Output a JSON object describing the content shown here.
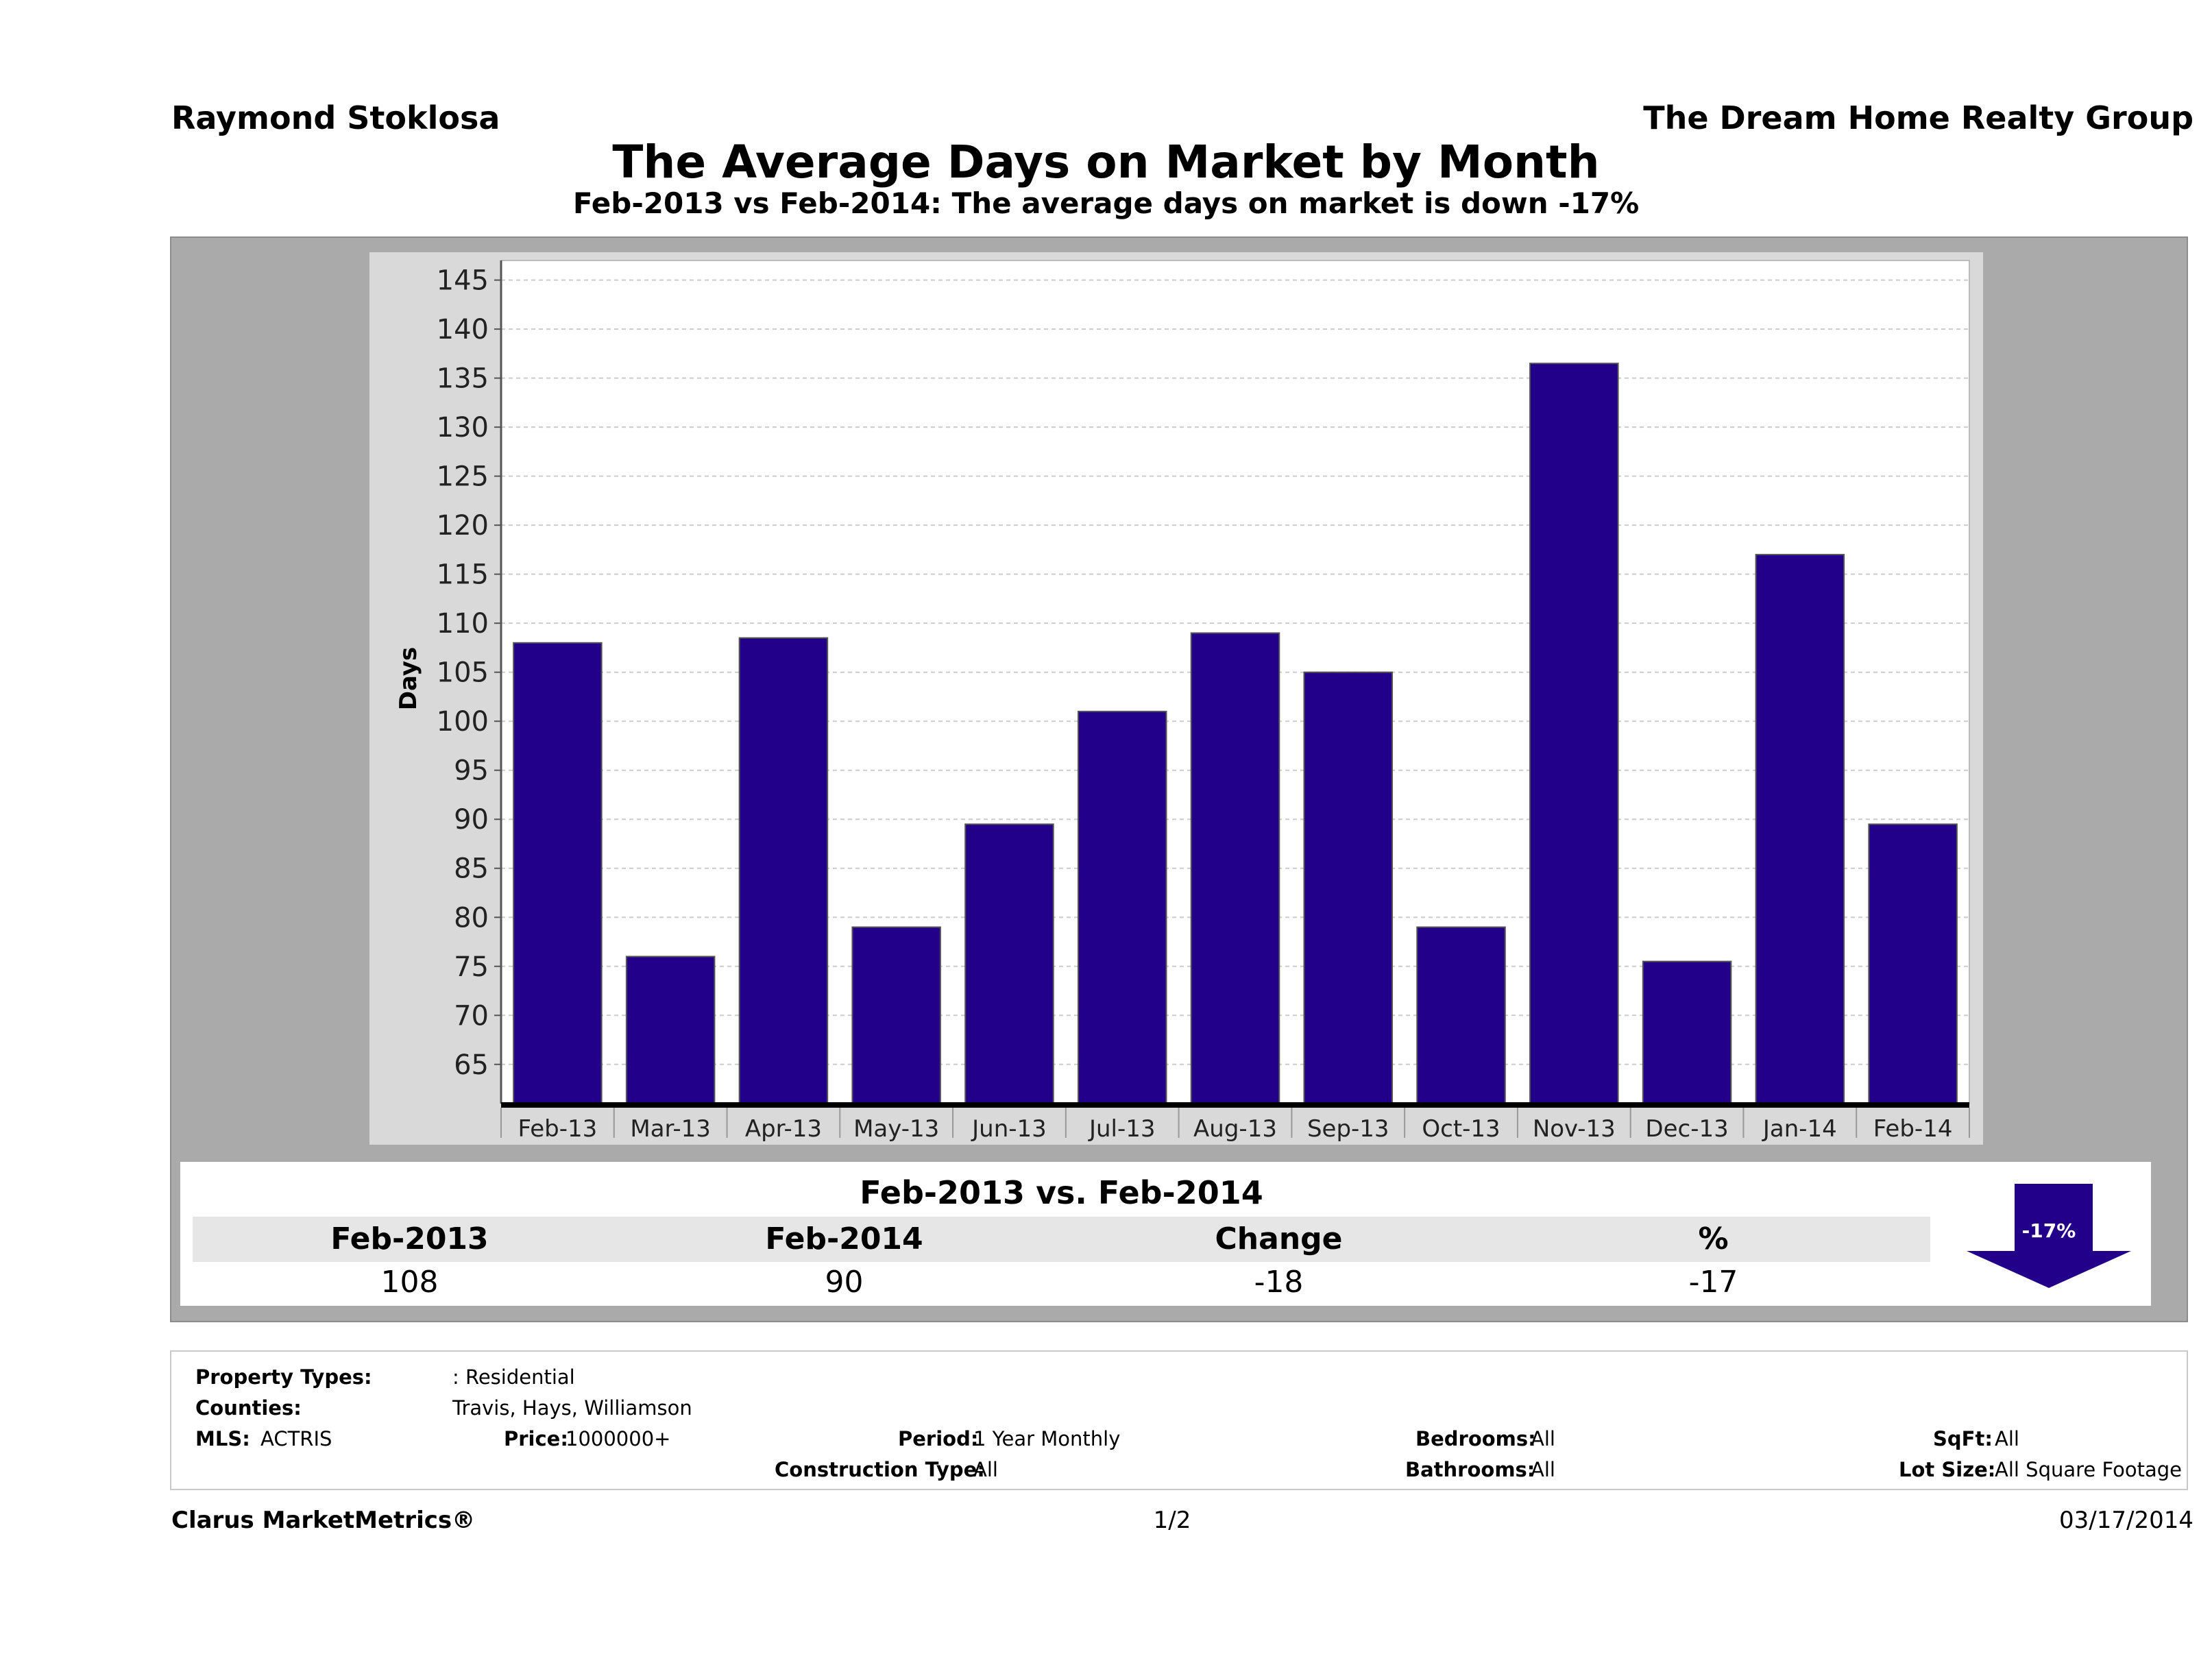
{
  "header": {
    "agent": "Raymond Stoklosa",
    "company": "The Dream Home Realty Group",
    "title": "The Average Days on Market by Month",
    "subtitle": "Feb-2013 vs Feb-2014: The average days on market is down -17%"
  },
  "chart_data": {
    "type": "bar",
    "ylabel": "Days",
    "xlabel": "",
    "categories": [
      "Feb-13",
      "Mar-13",
      "Apr-13",
      "May-13",
      "Jun-13",
      "Jul-13",
      "Aug-13",
      "Sep-13",
      "Oct-13",
      "Nov-13",
      "Dec-13",
      "Jan-14",
      "Feb-14"
    ],
    "values": [
      108,
      76,
      108.5,
      79,
      89.5,
      101,
      109,
      105,
      79,
      136.5,
      75.5,
      117,
      89.5
    ],
    "yticks": [
      65,
      70,
      75,
      80,
      85,
      90,
      95,
      100,
      105,
      110,
      115,
      120,
      125,
      130,
      135,
      140,
      145
    ],
    "ylim": [
      61,
      147
    ],
    "grid": true,
    "bar_color": "#23008a"
  },
  "summary": {
    "title": "Feb-2013 vs. Feb-2014",
    "headers": [
      "Feb-2013",
      "Feb-2014",
      "Change",
      "%"
    ],
    "values": [
      "108",
      "90",
      "-18",
      "-17"
    ],
    "arrow_label": "-17%",
    "arrow_color": "#23008a"
  },
  "criteria": {
    "property_types_label": "Property Types:",
    "property_types_value": ": Residential",
    "counties_label": "Counties:",
    "counties_value": "Travis, Hays, Williamson",
    "mls_label": "MLS:",
    "mls_value": "ACTRIS",
    "price_label": "Price:",
    "price_value": "1000000+",
    "period_label": "Period:",
    "period_value": "1 Year Monthly",
    "construction_label": "Construction Type:",
    "construction_value": "All",
    "bedrooms_label": "Bedrooms:",
    "bedrooms_value": "All",
    "bathrooms_label": "Bathrooms:",
    "bathrooms_value": "All",
    "sqft_label": "SqFt:",
    "sqft_value": "All",
    "lot_label": "Lot Size:",
    "lot_value": "All Square Footage"
  },
  "footer": {
    "brand": "Clarus MarketMetrics®",
    "page": "1/2",
    "date": "03/17/2014"
  }
}
